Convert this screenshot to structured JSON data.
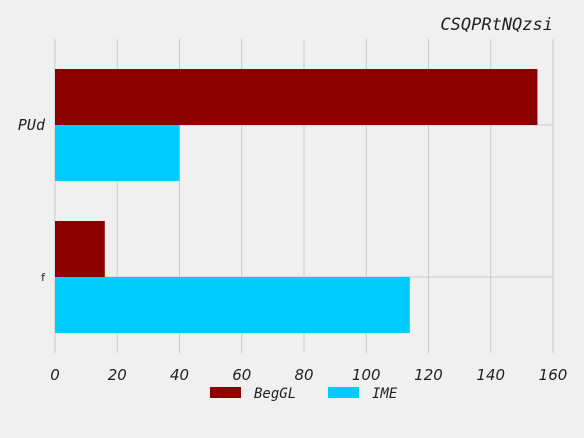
{
  "chart_data": {
    "type": "bar",
    "orientation": "horizontal",
    "title": "CSQPRtNQzsi",
    "categories": [
      "PUd",
      "f"
    ],
    "series": [
      {
        "name": "BegGL",
        "color": "#8b0000",
        "values": [
          155,
          16
        ]
      },
      {
        "name": "IME",
        "color": "#00ccff",
        "values": [
          40,
          114
        ]
      }
    ],
    "xlim": [
      0,
      160
    ],
    "xticks": [
      "0",
      "20",
      "40",
      "60",
      "80",
      "100",
      "120",
      "140",
      "160"
    ],
    "xlabel": "",
    "ylabel": "",
    "grid": true,
    "legend_position": "bottom-center"
  }
}
